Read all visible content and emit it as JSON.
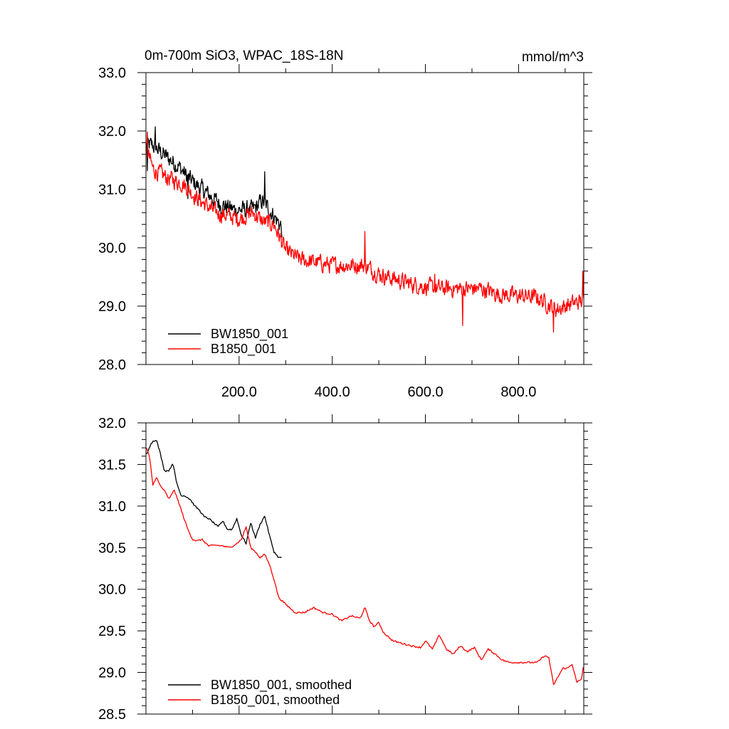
{
  "chart_data": [
    {
      "type": "line",
      "title": "0m-700m SiO3, WPAC_18S-18N",
      "units": "mmol/m^3",
      "xlim": [
        0,
        940
      ],
      "ylim": [
        28.0,
        33.0
      ],
      "x_ticks": [
        200,
        400,
        600,
        800
      ],
      "x_tick_labels": [
        "200.0",
        "400.0",
        "600.0",
        "800.0"
      ],
      "y_ticks": [
        28,
        29,
        30,
        31,
        32,
        33
      ],
      "y_tick_labels": [
        "28.0",
        "29.0",
        "30.0",
        "31.0",
        "32.0",
        "33.0"
      ],
      "legend_position": "bottom-left",
      "series": [
        {
          "name": "BW1850_001",
          "color": "#000000",
          "x_range": [
            1,
            292
          ],
          "trend_points": [
            [
              1,
              31.75
            ],
            [
              15,
              31.75
            ],
            [
              45,
              31.55
            ],
            [
              70,
              31.4
            ],
            [
              90,
              31.2
            ],
            [
              120,
              31.0
            ],
            [
              160,
              30.75
            ],
            [
              190,
              30.65
            ],
            [
              230,
              30.65
            ],
            [
              250,
              30.8
            ],
            [
              270,
              30.6
            ],
            [
              292,
              30.35
            ]
          ],
          "noise_amplitude": 0.18,
          "spikes": [
            [
              3,
              -0.45
            ],
            [
              20,
              0.22
            ],
            [
              90,
              -0.35
            ],
            [
              255,
              0.45
            ],
            [
              292,
              -0.25
            ]
          ]
        },
        {
          "name": "B1850_001",
          "color": "#ff0000",
          "x_range": [
            1,
            940
          ],
          "trend_points": [
            [
              1,
              31.7
            ],
            [
              15,
              31.35
            ],
            [
              45,
              31.2
            ],
            [
              80,
              31.1
            ],
            [
              110,
              30.85
            ],
            [
              150,
              30.6
            ],
            [
              200,
              30.5
            ],
            [
              230,
              30.6
            ],
            [
              250,
              30.45
            ],
            [
              275,
              30.4
            ],
            [
              300,
              29.95
            ],
            [
              330,
              29.8
            ],
            [
              400,
              29.7
            ],
            [
              470,
              29.7
            ],
            [
              500,
              29.55
            ],
            [
              560,
              29.4
            ],
            [
              620,
              29.3
            ],
            [
              680,
              29.3
            ],
            [
              720,
              29.3
            ],
            [
              760,
              29.2
            ],
            [
              840,
              29.15
            ],
            [
              880,
              28.95
            ],
            [
              920,
              29.05
            ],
            [
              940,
              29.1
            ]
          ],
          "noise_amplitude": 0.17,
          "spikes": [
            [
              3,
              0.35
            ],
            [
              470,
              0.5
            ],
            [
              620,
              0.35
            ],
            [
              680,
              -0.55
            ],
            [
              875,
              -0.5
            ],
            [
              938,
              0.4
            ]
          ]
        }
      ]
    },
    {
      "type": "line",
      "xlim": [
        0,
        940
      ],
      "ylim": [
        28.5,
        32.0
      ],
      "x_ticks": [
        200,
        400,
        600,
        800
      ],
      "y_ticks": [
        28.5,
        29.0,
        29.5,
        30.0,
        30.5,
        31.0,
        31.5,
        32.0
      ],
      "y_tick_labels": [
        "28.5",
        "29.0",
        "29.5",
        "30.0",
        "30.5",
        "31.0",
        "31.5",
        "32.0"
      ],
      "legend_position": "bottom-left",
      "series": [
        {
          "name": "BW1850_001, smoothed",
          "color": "#000000",
          "x_range": [
            1,
            292
          ],
          "points": [
            [
              1,
              31.62
            ],
            [
              8,
              31.72
            ],
            [
              15,
              31.78
            ],
            [
              22,
              31.8
            ],
            [
              30,
              31.65
            ],
            [
              40,
              31.42
            ],
            [
              50,
              31.43
            ],
            [
              58,
              31.52
            ],
            [
              65,
              31.3
            ],
            [
              75,
              31.13
            ],
            [
              85,
              31.12
            ],
            [
              95,
              31.08
            ],
            [
              105,
              31.0
            ],
            [
              115,
              30.95
            ],
            [
              125,
              30.87
            ],
            [
              135,
              30.85
            ],
            [
              145,
              30.8
            ],
            [
              155,
              30.75
            ],
            [
              165,
              30.82
            ],
            [
              175,
              30.72
            ],
            [
              185,
              30.72
            ],
            [
              195,
              30.85
            ],
            [
              205,
              30.65
            ],
            [
              215,
              30.55
            ],
            [
              225,
              30.8
            ],
            [
              235,
              30.62
            ],
            [
              245,
              30.78
            ],
            [
              255,
              30.88
            ],
            [
              265,
              30.65
            ],
            [
              275,
              30.45
            ],
            [
              285,
              30.38
            ],
            [
              292,
              30.38
            ]
          ]
        },
        {
          "name": "B1850_001, smoothed",
          "color": "#ff0000",
          "x_range": [
            1,
            940
          ],
          "points": [
            [
              1,
              31.7
            ],
            [
              8,
              31.58
            ],
            [
              15,
              31.25
            ],
            [
              22,
              31.35
            ],
            [
              30,
              31.25
            ],
            [
              40,
              31.18
            ],
            [
              50,
              31.08
            ],
            [
              60,
              31.2
            ],
            [
              70,
              31.05
            ],
            [
              80,
              30.88
            ],
            [
              90,
              30.72
            ],
            [
              100,
              30.6
            ],
            [
              110,
              30.58
            ],
            [
              120,
              30.6
            ],
            [
              135,
              30.52
            ],
            [
              150,
              30.53
            ],
            [
              165,
              30.52
            ],
            [
              180,
              30.5
            ],
            [
              195,
              30.55
            ],
            [
              205,
              30.6
            ],
            [
              215,
              30.75
            ],
            [
              225,
              30.5
            ],
            [
              235,
              30.45
            ],
            [
              245,
              30.38
            ],
            [
              255,
              30.42
            ],
            [
              265,
              30.3
            ],
            [
              275,
              30.12
            ],
            [
              285,
              29.9
            ],
            [
              300,
              29.82
            ],
            [
              320,
              29.72
            ],
            [
              340,
              29.72
            ],
            [
              360,
              29.78
            ],
            [
              380,
              29.72
            ],
            [
              400,
              29.7
            ],
            [
              420,
              29.62
            ],
            [
              440,
              29.68
            ],
            [
              460,
              29.65
            ],
            [
              470,
              29.78
            ],
            [
              480,
              29.62
            ],
            [
              490,
              29.55
            ],
            [
              500,
              29.6
            ],
            [
              510,
              29.48
            ],
            [
              530,
              29.38
            ],
            [
              550,
              29.35
            ],
            [
              570,
              29.32
            ],
            [
              590,
              29.3
            ],
            [
              600,
              29.38
            ],
            [
              615,
              29.28
            ],
            [
              630,
              29.45
            ],
            [
              645,
              29.28
            ],
            [
              660,
              29.22
            ],
            [
              675,
              29.32
            ],
            [
              690,
              29.25
            ],
            [
              705,
              29.3
            ],
            [
              720,
              29.15
            ],
            [
              735,
              29.28
            ],
            [
              750,
              29.22
            ],
            [
              765,
              29.15
            ],
            [
              780,
              29.12
            ],
            [
              795,
              29.12
            ],
            [
              810,
              29.12
            ],
            [
              825,
              29.12
            ],
            [
              840,
              29.12
            ],
            [
              855,
              29.2
            ],
            [
              865,
              29.18
            ],
            [
              875,
              28.85
            ],
            [
              885,
              28.95
            ],
            [
              895,
              29.05
            ],
            [
              905,
              29.05
            ],
            [
              915,
              29.1
            ],
            [
              925,
              28.88
            ],
            [
              935,
              28.92
            ],
            [
              940,
              29.1
            ]
          ]
        }
      ]
    }
  ]
}
